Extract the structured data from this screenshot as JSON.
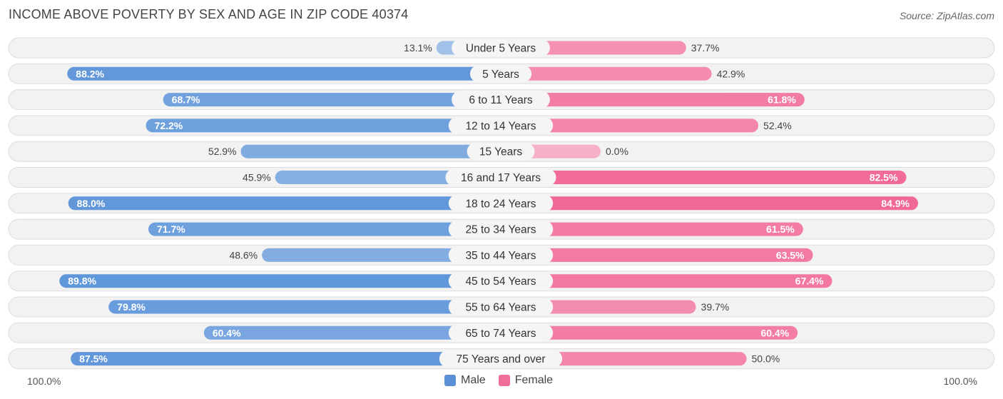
{
  "title": "INCOME ABOVE POVERTY BY SEX AND AGE IN ZIP CODE 40374",
  "source": "Source: ZipAtlas.com",
  "chart_data": {
    "type": "bar",
    "orientation": "horizontal-diverging",
    "categories": [
      "Under 5 Years",
      "5 Years",
      "6 to 11 Years",
      "12 to 14 Years",
      "15 Years",
      "16 and 17 Years",
      "18 to 24 Years",
      "25 to 34 Years",
      "35 to 44 Years",
      "45 to 54 Years",
      "55 to 64 Years",
      "65 to 74 Years",
      "75 Years and over"
    ],
    "series": [
      {
        "name": "Male",
        "color": "#6a9fdc",
        "values": [
          13.1,
          88.2,
          68.7,
          72.2,
          52.9,
          45.9,
          88.0,
          71.7,
          48.6,
          89.8,
          79.8,
          60.4,
          87.5
        ],
        "labels": [
          "13.1%",
          "88.2%",
          "68.7%",
          "72.2%",
          "52.9%",
          "45.9%",
          "88.0%",
          "71.7%",
          "48.6%",
          "89.8%",
          "79.8%",
          "60.4%",
          "87.5%"
        ]
      },
      {
        "name": "Female",
        "color": "#f06e98",
        "values": [
          37.7,
          42.9,
          61.8,
          52.4,
          0.0,
          82.5,
          84.9,
          61.5,
          63.5,
          67.4,
          39.7,
          60.4,
          50.0
        ],
        "labels": [
          "37.7%",
          "42.9%",
          "61.8%",
          "52.4%",
          "0.0%",
          "82.5%",
          "84.9%",
          "61.5%",
          "63.5%",
          "67.4%",
          "39.7%",
          "60.4%",
          "50.0%"
        ]
      }
    ],
    "xlim": [
      -100,
      100
    ],
    "axis_left_label": "100.0%",
    "axis_right_label": "100.0%",
    "legend": [
      "Male",
      "Female"
    ],
    "legend_position": "bottom-center"
  }
}
